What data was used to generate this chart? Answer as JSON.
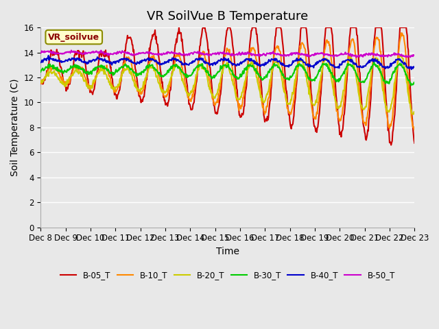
{
  "title": "VR SoilVue B Temperature",
  "xlabel": "Time",
  "ylabel": "Soil Temperature (C)",
  "ylim": [
    0,
    16
  ],
  "yticks": [
    0,
    2,
    4,
    6,
    8,
    10,
    12,
    14,
    16
  ],
  "n_days": 15,
  "xtick_labels": [
    "Dec 8",
    "Dec 9",
    "Dec 10",
    "Dec 11",
    "Dec 12",
    "Dec 13",
    "Dec 14",
    "Dec 15",
    "Dec 16",
    "Dec 17",
    "Dec 18",
    "Dec 19",
    "Dec 20",
    "Dec 21",
    "Dec 22",
    "Dec 23"
  ],
  "series": {
    "B-05_T": {
      "color": "#cc0000",
      "linewidth": 1.5
    },
    "B-10_T": {
      "color": "#ff8800",
      "linewidth": 1.5
    },
    "B-20_T": {
      "color": "#cccc00",
      "linewidth": 1.5
    },
    "B-30_T": {
      "color": "#00cc00",
      "linewidth": 1.5
    },
    "B-40_T": {
      "color": "#0000cc",
      "linewidth": 1.5
    },
    "B-50_T": {
      "color": "#cc00cc",
      "linewidth": 1.5
    }
  },
  "legend_label": "VR_soilvue",
  "background_color": "#e8e8e8",
  "plot_bg_color": "#e8e8e8",
  "grid_color": "#ffffff",
  "title_fontsize": 13,
  "axis_fontsize": 10,
  "tick_fontsize": 8.5
}
